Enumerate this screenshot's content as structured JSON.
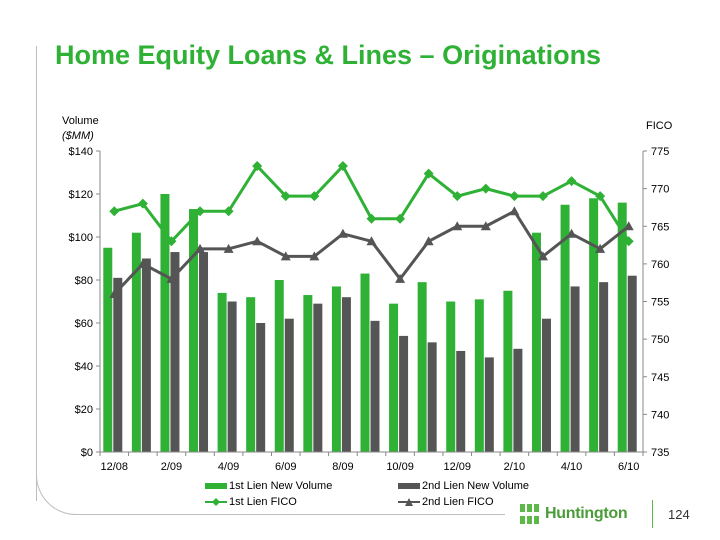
{
  "slide": {
    "title": "Home Equity Loans & Lines – Originations",
    "left_axis_label": "Volume",
    "left_axis_unit": "($MM)",
    "right_axis_label": "FICO",
    "page_number": "124",
    "logo_text": "Huntington"
  },
  "colors": {
    "title": "#2eb135",
    "first_lien": "#2eb135",
    "second_lien": "#555555",
    "logo": "#5cb947"
  },
  "chart_data": {
    "type": "bar",
    "months": [
      "12/08",
      "1/09",
      "2/09",
      "3/09",
      "4/09",
      "5/09",
      "6/09",
      "7/09",
      "8/09",
      "9/09",
      "10/09",
      "11/09",
      "12/09",
      "1/10",
      "2/10",
      "3/10",
      "4/10",
      "5/10",
      "6/10"
    ],
    "x_tick_labels": [
      "12/08",
      "",
      "2/09",
      "",
      "4/09",
      "",
      "6/09",
      "",
      "8/09",
      "",
      "10/09",
      "",
      "12/09",
      "",
      "2/10",
      "",
      "4/10",
      "",
      "6/10"
    ],
    "y_left": {
      "min": 0,
      "max": 140,
      "step": 20,
      "tick_labels": [
        "$0",
        "$20",
        "$40",
        "$60",
        "$80",
        "$100",
        "$120",
        "$140"
      ]
    },
    "y_right": {
      "min": 735,
      "max": 775,
      "step": 5,
      "tick_labels": [
        "735",
        "740",
        "745",
        "750",
        "755",
        "760",
        "765",
        "770",
        "775"
      ]
    },
    "bar_series": [
      {
        "name": "1st Lien New Volume",
        "axis": "left",
        "values": [
          95,
          102,
          120,
          113,
          74,
          72,
          80,
          73,
          77,
          83,
          69,
          79,
          70,
          71,
          75,
          102,
          115,
          118,
          116
        ]
      },
      {
        "name": "2nd Lien New Volume",
        "axis": "left",
        "values": [
          81,
          90,
          93,
          93,
          70,
          60,
          62,
          69,
          72,
          61,
          54,
          51,
          47,
          44,
          48,
          62,
          77,
          79,
          82
        ]
      }
    ],
    "line_series": [
      {
        "name": "1st Lien FICO",
        "axis": "right",
        "marker": "diamond",
        "values": [
          767,
          768,
          763,
          767,
          767,
          773,
          769,
          769,
          773,
          766,
          766,
          772,
          769,
          770,
          769,
          769,
          771,
          769,
          763
        ]
      },
      {
        "name": "2nd Lien FICO",
        "axis": "right",
        "marker": "triangle",
        "values": [
          756,
          760,
          758,
          762,
          762,
          763,
          761,
          761,
          764,
          763,
          758,
          763,
          765,
          765,
          767,
          761,
          764,
          762,
          765
        ]
      }
    ],
    "legend_position": "bottom"
  }
}
